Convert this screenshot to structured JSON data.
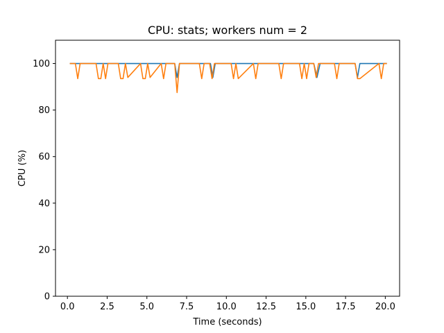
{
  "chart_data": {
    "type": "line",
    "title": "CPU: stats; workers num = 2",
    "xlabel": "Time (seconds)",
    "ylabel": "CPU (%)",
    "xlim": [
      -0.75,
      20.9
    ],
    "ylim": [
      0,
      110
    ],
    "xticks": [
      0.0,
      2.5,
      5.0,
      7.5,
      10.0,
      12.5,
      15.0,
      17.5,
      20.0
    ],
    "xtick_labels": [
      "0.0",
      "2.5",
      "5.0",
      "7.5",
      "10.0",
      "12.5",
      "15.0",
      "17.5",
      "20.0"
    ],
    "yticks": [
      0,
      20,
      40,
      60,
      80,
      100
    ],
    "ytick_labels": [
      "0",
      "20",
      "40",
      "60",
      "80",
      "100"
    ],
    "grid": false,
    "legend": "none",
    "series": [
      {
        "color": "#1f77b4",
        "x": [
          0.15,
          0.5,
          0.65,
          0.8,
          1.9,
          2.05,
          2.2,
          2.4,
          2.55,
          2.7,
          4.6,
          4.75,
          4.9,
          5.8,
          6.0,
          6.15,
          6.75,
          6.9,
          7.05,
          8.2,
          9.0,
          9.15,
          9.3,
          10.4,
          10.55,
          10.7,
          11.8,
          13.4,
          15.5,
          15.7,
          15.9,
          18.1,
          18.25,
          18.4,
          19.6,
          19.75,
          19.9,
          20.1
        ],
        "y": [
          100,
          100,
          100,
          100,
          100,
          100,
          100,
          100,
          100,
          100,
          100,
          100,
          100,
          100,
          100,
          100,
          100,
          94,
          100,
          100,
          100,
          94,
          100,
          100,
          100,
          100,
          100,
          100,
          100,
          94,
          100,
          100,
          94,
          100,
          100,
          100,
          100,
          100
        ]
      },
      {
        "color": "#ff7f0e",
        "x": [
          0.15,
          0.5,
          0.65,
          0.8,
          1.8,
          1.95,
          2.1,
          2.25,
          2.4,
          2.55,
          3.2,
          3.35,
          3.5,
          3.65,
          3.8,
          4.6,
          4.75,
          4.9,
          5.05,
          5.2,
          5.9,
          6.05,
          6.2,
          6.75,
          6.9,
          7.05,
          8.3,
          8.45,
          8.6,
          8.95,
          9.1,
          9.25,
          10.3,
          10.45,
          10.6,
          10.75,
          11.7,
          11.85,
          12.0,
          13.3,
          13.45,
          13.6,
          14.6,
          14.75,
          14.9,
          15.05,
          15.2,
          15.5,
          15.65,
          15.8,
          16.8,
          16.95,
          17.1,
          18.1,
          18.25,
          18.4,
          19.6,
          19.75,
          19.9,
          20.1
        ],
        "y": [
          100,
          100,
          93.5,
          100,
          100,
          93.5,
          93.5,
          100,
          93.5,
          100,
          100,
          93.5,
          93.5,
          100,
          94,
          100,
          93.5,
          93.5,
          100,
          94,
          100,
          93.5,
          100,
          100,
          87.5,
          100,
          100,
          93.5,
          100,
          100,
          93.5,
          100,
          100,
          93.5,
          100,
          93.5,
          100,
          93.5,
          100,
          100,
          93.5,
          100,
          100,
          93.5,
          100,
          93.5,
          100,
          100,
          94,
          100,
          100,
          93.5,
          100,
          100,
          93.5,
          93.5,
          100,
          93.5,
          100,
          100
        ]
      }
    ]
  }
}
